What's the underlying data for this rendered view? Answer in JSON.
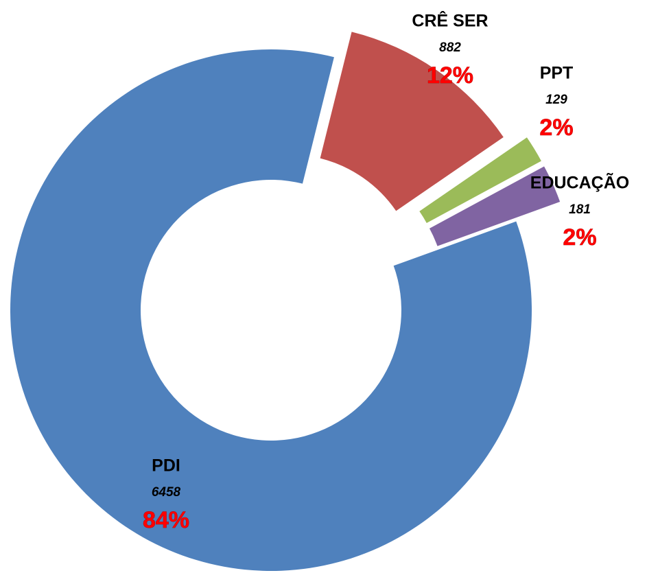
{
  "chart_data": {
    "type": "donut",
    "categories": [
      "PDI",
      "CRÊ SER",
      "PPT",
      "EDUCAÇÃO"
    ],
    "values": [
      6458,
      882,
      129,
      181
    ],
    "percent_labels": [
      "84%",
      "12%",
      "2%",
      "2%"
    ],
    "colors": [
      "#4f81bd",
      "#c0504d",
      "#9bbb59",
      "#8064a2"
    ]
  }
}
